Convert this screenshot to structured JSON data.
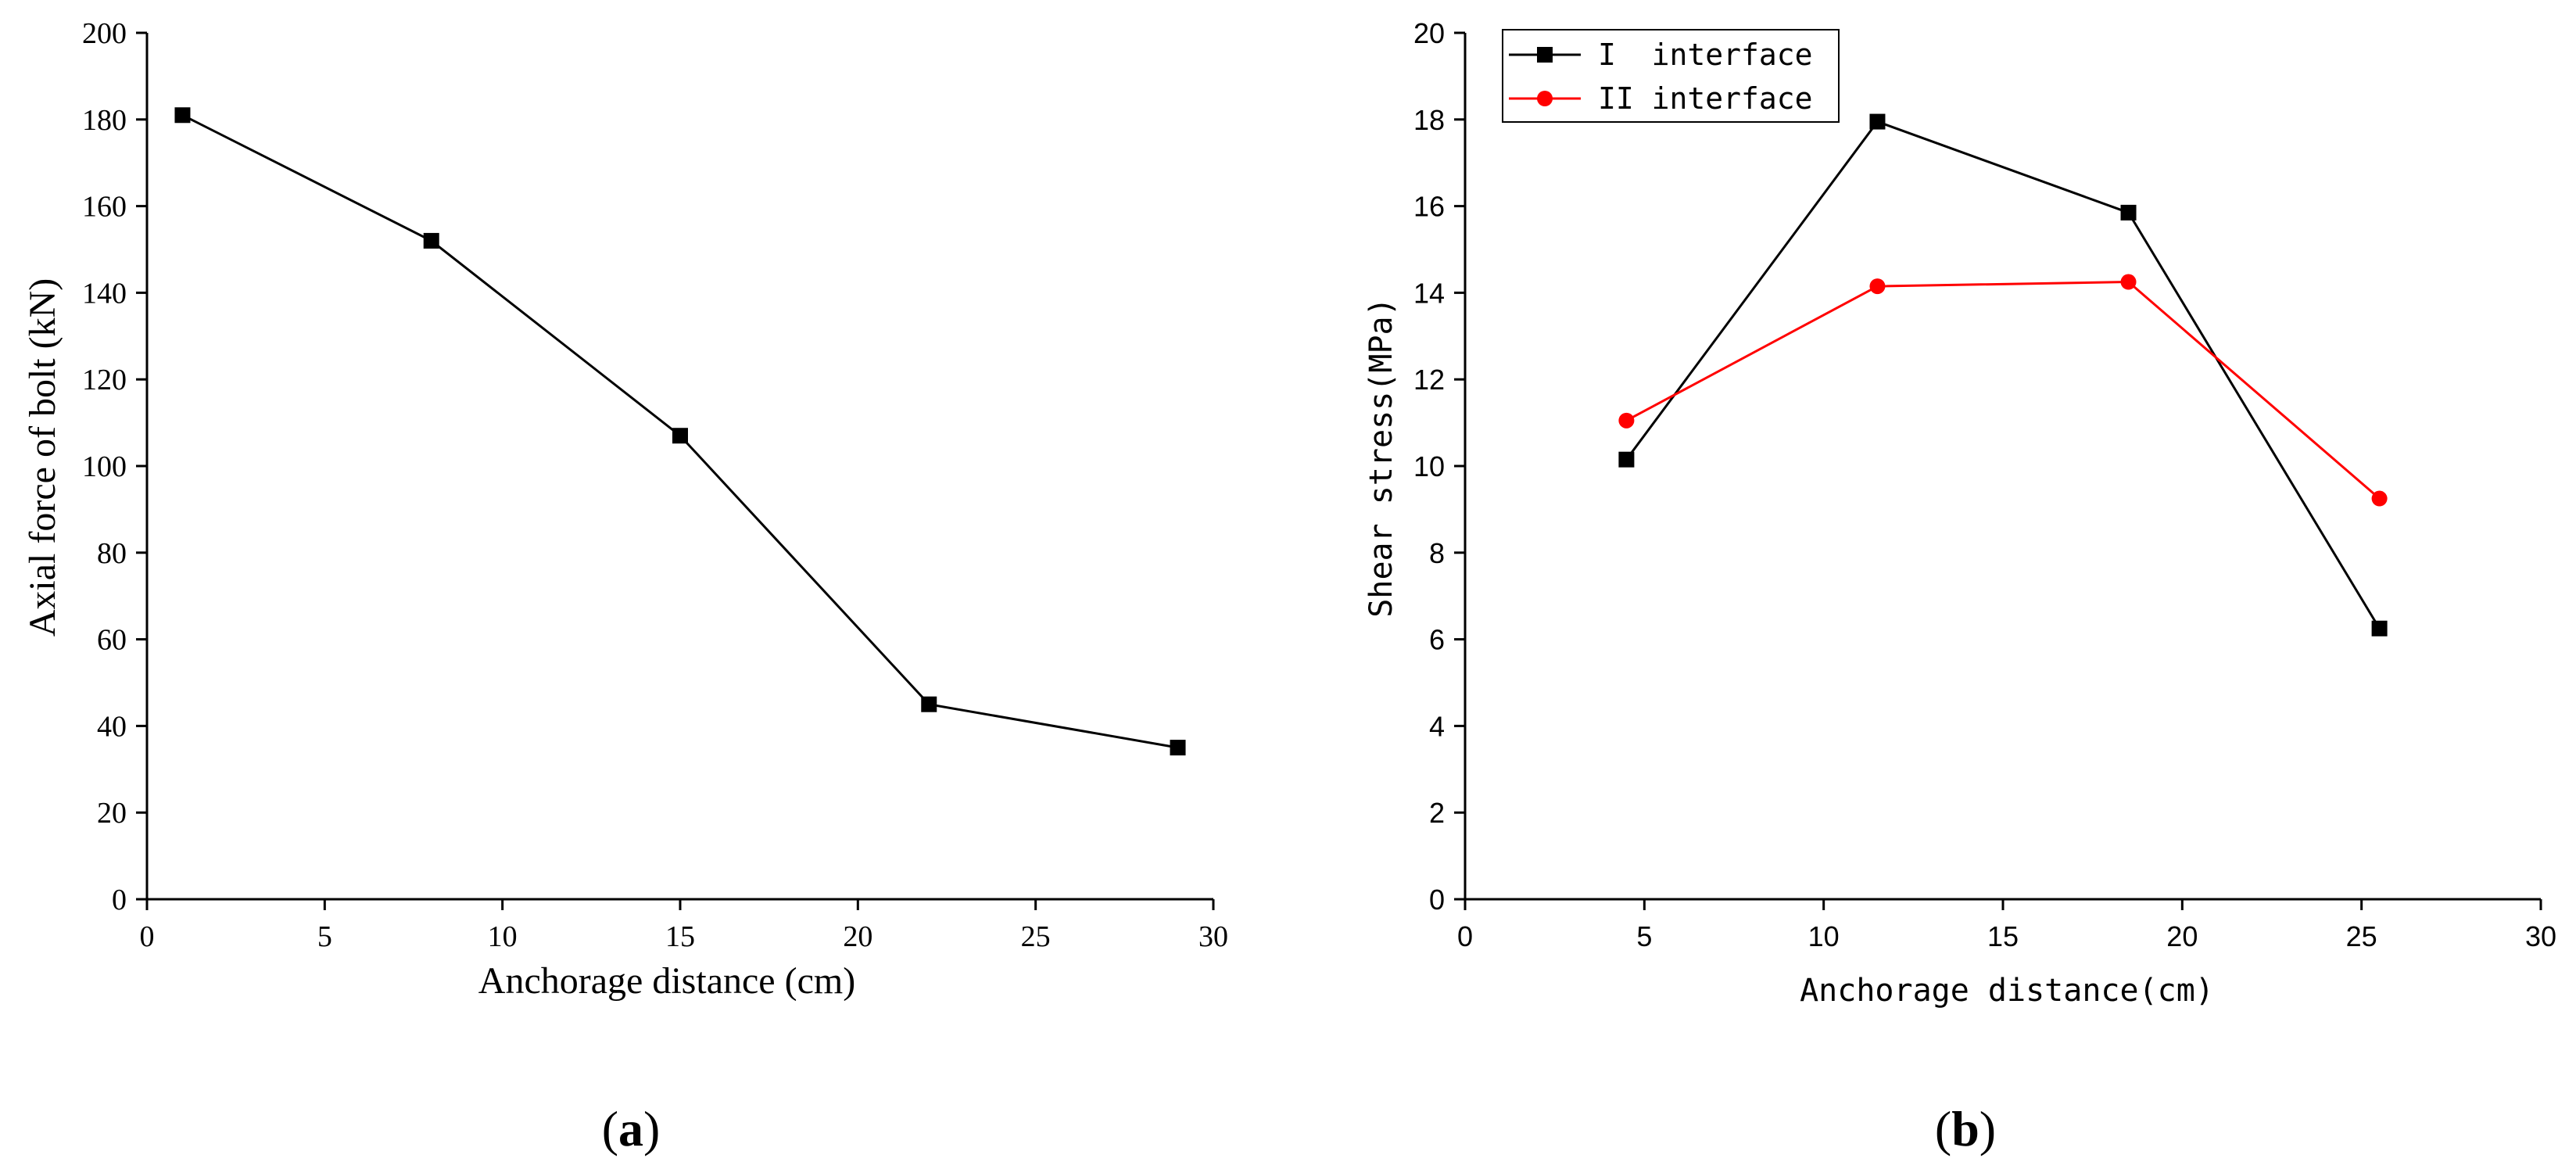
{
  "chart_data": [
    {
      "type": "line",
      "panel_label": "a",
      "xlabel": "Anchorage distance (cm)",
      "ylabel": "Axial force of bolt (kN)",
      "xlim": [
        0,
        30
      ],
      "ylim": [
        0,
        200
      ],
      "xticks": [
        0,
        5,
        10,
        15,
        20,
        25,
        30
      ],
      "yticks": [
        0,
        20,
        40,
        60,
        80,
        100,
        120,
        140,
        160,
        180,
        200
      ],
      "grid": false,
      "series": [
        {
          "name": "Axial force",
          "color": "#000000",
          "marker": "square",
          "x": [
            1,
            8,
            15,
            22,
            29
          ],
          "y": [
            181,
            152,
            107,
            45,
            35
          ]
        }
      ]
    },
    {
      "type": "line",
      "panel_label": "b",
      "xlabel": "Anchorage distance(cm)",
      "ylabel": "Shear stress(MPa)",
      "xlim": [
        0,
        30
      ],
      "ylim": [
        0,
        20
      ],
      "xticks": [
        0,
        5,
        10,
        15,
        20,
        25,
        30
      ],
      "yticks": [
        0,
        2,
        4,
        6,
        8,
        10,
        12,
        14,
        16,
        18,
        20
      ],
      "grid": false,
      "legend_position": "top-left",
      "series": [
        {
          "name": "I  interface",
          "color": "#000000",
          "marker": "square",
          "x": [
            4.5,
            11.5,
            18.5,
            25.5
          ],
          "y": [
            10.15,
            17.95,
            15.85,
            6.25
          ]
        },
        {
          "name": "II interface",
          "color": "#ff0000",
          "marker": "circle",
          "x": [
            4.5,
            11.5,
            18.5,
            25.5
          ],
          "y": [
            11.05,
            14.15,
            14.25,
            9.25
          ]
        }
      ]
    }
  ]
}
